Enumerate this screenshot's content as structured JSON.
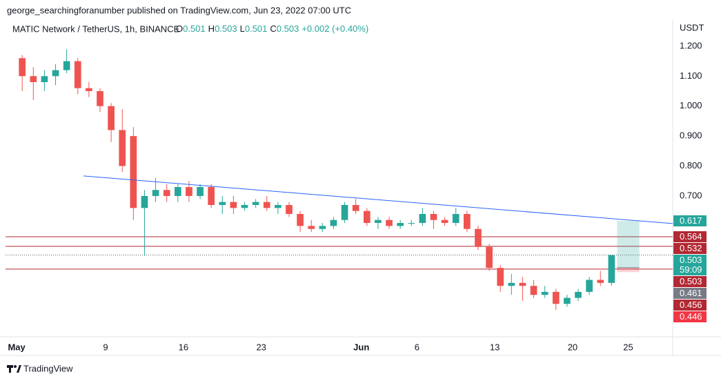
{
  "chart_data": {
    "type": "candlestick",
    "publisher": "george_searchingforanumber published on TradingView.com, Jun 23, 2022 07:00 UTC",
    "title": "MATIC Network / TetherUS, 1h, BINANCE",
    "legend": {
      "o_label": "O",
      "o": 0.501,
      "h_label": "H",
      "h": 0.503,
      "l_label": "L",
      "l": 0.501,
      "c_label": "C",
      "c": 0.503,
      "change": "+0.002 (+0.40%)"
    },
    "currency": "USDT",
    "brand": "TradingView",
    "x": [
      "2022-05-01",
      "2022-05-02",
      "2022-05-03",
      "2022-05-04",
      "2022-05-05",
      "2022-05-06",
      "2022-05-07",
      "2022-05-08",
      "2022-05-09",
      "2022-05-10",
      "2022-05-11",
      "2022-05-12",
      "2022-05-13",
      "2022-05-14",
      "2022-05-15",
      "2022-05-16",
      "2022-05-17",
      "2022-05-18",
      "2022-05-19",
      "2022-05-20",
      "2022-05-21",
      "2022-05-22",
      "2022-05-23",
      "2022-05-24",
      "2022-05-25",
      "2022-05-26",
      "2022-05-27",
      "2022-05-28",
      "2022-05-29",
      "2022-05-30",
      "2022-05-31",
      "2022-06-01",
      "2022-06-02",
      "2022-06-03",
      "2022-06-04",
      "2022-06-05",
      "2022-06-06",
      "2022-06-07",
      "2022-06-08",
      "2022-06-09",
      "2022-06-10",
      "2022-06-11",
      "2022-06-12",
      "2022-06-13",
      "2022-06-14",
      "2022-06-15",
      "2022-06-16",
      "2022-06-17",
      "2022-06-18",
      "2022-06-19",
      "2022-06-20",
      "2022-06-21",
      "2022-06-22",
      "2022-06-23"
    ],
    "open": [
      1.16,
      1.1,
      1.08,
      1.1,
      1.12,
      1.15,
      1.06,
      1.05,
      1.0,
      0.92,
      0.9,
      0.66,
      0.7,
      0.72,
      0.7,
      0.73,
      0.7,
      0.73,
      0.67,
      0.68,
      0.66,
      0.67,
      0.68,
      0.66,
      0.67,
      0.64,
      0.6,
      0.59,
      0.6,
      0.62,
      0.67,
      0.65,
      0.61,
      0.62,
      0.6,
      0.61,
      0.61,
      0.64,
      0.62,
      0.61,
      0.64,
      0.59,
      0.53,
      0.46,
      0.4,
      0.41,
      0.4,
      0.37,
      0.38,
      0.34,
      0.36,
      0.38,
      0.42,
      0.41
    ],
    "high": [
      1.17,
      1.13,
      1.12,
      1.14,
      1.19,
      1.16,
      1.08,
      1.06,
      1.01,
      0.99,
      0.93,
      0.72,
      0.76,
      0.74,
      0.74,
      0.75,
      0.74,
      0.74,
      0.7,
      0.7,
      0.68,
      0.69,
      0.7,
      0.68,
      0.68,
      0.65,
      0.62,
      0.61,
      0.63,
      0.68,
      0.69,
      0.66,
      0.63,
      0.63,
      0.62,
      0.62,
      0.66,
      0.65,
      0.63,
      0.66,
      0.65,
      0.6,
      0.54,
      0.47,
      0.44,
      0.43,
      0.42,
      0.4,
      0.39,
      0.37,
      0.39,
      0.43,
      0.45,
      0.5
    ],
    "low": [
      1.05,
      1.02,
      1.05,
      1.07,
      1.11,
      1.04,
      1.03,
      0.98,
      0.88,
      0.78,
      0.62,
      0.5,
      0.68,
      0.68,
      0.68,
      0.68,
      0.69,
      0.66,
      0.64,
      0.64,
      0.65,
      0.66,
      0.65,
      0.64,
      0.63,
      0.58,
      0.58,
      0.58,
      0.59,
      0.61,
      0.64,
      0.6,
      0.59,
      0.59,
      0.59,
      0.6,
      0.6,
      0.59,
      0.6,
      0.6,
      0.58,
      0.52,
      0.45,
      0.38,
      0.37,
      0.35,
      0.36,
      0.36,
      0.32,
      0.33,
      0.35,
      0.37,
      0.4,
      0.4
    ],
    "close": [
      1.1,
      1.08,
      1.1,
      1.12,
      1.15,
      1.06,
      1.05,
      1.0,
      0.92,
      0.8,
      0.66,
      0.7,
      0.72,
      0.7,
      0.73,
      0.7,
      0.73,
      0.67,
      0.68,
      0.66,
      0.67,
      0.68,
      0.66,
      0.67,
      0.64,
      0.6,
      0.59,
      0.6,
      0.62,
      0.67,
      0.65,
      0.61,
      0.62,
      0.6,
      0.61,
      0.61,
      0.64,
      0.62,
      0.61,
      0.64,
      0.59,
      0.53,
      0.46,
      0.4,
      0.41,
      0.4,
      0.37,
      0.38,
      0.34,
      0.36,
      0.38,
      0.42,
      0.41,
      0.503
    ],
    "up_color": "#26a69a",
    "down_color": "#ef5350",
    "xlim": [
      "2022-04-30",
      "2022-06-29"
    ],
    "xticks": [
      {
        "value": "2022-05-01",
        "label": "May"
      },
      {
        "value": "2022-05-09",
        "label": "9"
      },
      {
        "value": "2022-05-16",
        "label": "16"
      },
      {
        "value": "2022-05-23",
        "label": "23"
      },
      {
        "value": "2022-06-01",
        "label": "Jun"
      },
      {
        "value": "2022-06-06",
        "label": "6"
      },
      {
        "value": "2022-06-13",
        "label": "13"
      },
      {
        "value": "2022-06-20",
        "label": "20"
      },
      {
        "value": "2022-06-25",
        "label": "25"
      }
    ],
    "ylim": [
      0.23,
      1.285
    ],
    "yticks": [
      {
        "value": 0.7,
        "label": "0.700"
      },
      {
        "value": 0.8,
        "label": "0.800"
      },
      {
        "value": 0.9,
        "label": "0.900"
      },
      {
        "value": 1.0,
        "label": "1.000"
      },
      {
        "value": 1.1,
        "label": "1.100"
      },
      {
        "value": 1.2,
        "label": "1.200"
      }
    ],
    "trendline": {
      "x": [
        "2022-05-07",
        "2022-06-29"
      ],
      "values": [
        0.767,
        0.608
      ],
      "color": "#2962ff"
    },
    "levels": [
      {
        "value": 0.564,
        "color": "#b22833"
      },
      {
        "value": 0.532,
        "color": "#b22833"
      },
      {
        "value": 0.456,
        "color": "#b22833"
      }
    ],
    "last_price": {
      "value": 0.503,
      "countdown": "59:09",
      "color": "#26a69a"
    },
    "marker_label": {
      "value": 0.503,
      "color": "#b22833"
    },
    "position": {
      "x": [
        "2022-06-24",
        "2022-06-26"
      ],
      "target": 0.617,
      "entry": 0.461,
      "stop": 0.446,
      "target_color": "#26a69a",
      "entry_color": "#787b86",
      "stop_color": "#f23645"
    }
  }
}
